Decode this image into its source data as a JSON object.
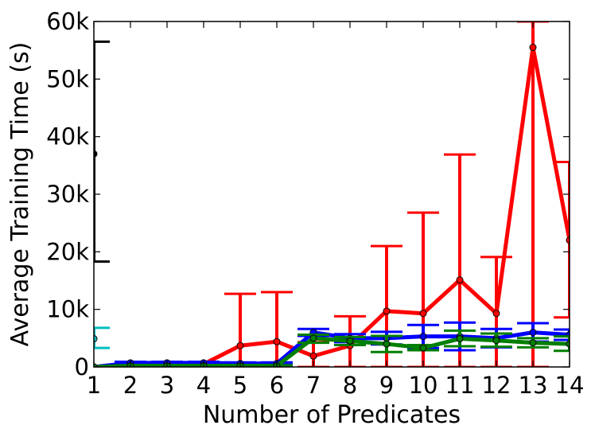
{
  "chart_data": {
    "type": "line",
    "title": "",
    "xlabel": "Number of Predicates",
    "ylabel": "Average Training Time (s)",
    "xlim": [
      1,
      14
    ],
    "ylim": [
      0,
      60000
    ],
    "x_ticks": [
      1,
      2,
      3,
      4,
      5,
      6,
      7,
      8,
      9,
      10,
      11,
      12,
      13,
      14
    ],
    "x_tick_labels": [
      "1",
      "2",
      "3",
      "4",
      "5",
      "6",
      "7",
      "8",
      "9",
      "10",
      "11",
      "12",
      "13",
      "14"
    ],
    "y_ticks": [
      0,
      10000,
      20000,
      30000,
      40000,
      50000,
      60000
    ],
    "y_tick_labels": [
      "0",
      "10k",
      "20k",
      "30k",
      "40k",
      "50k",
      "60k"
    ],
    "grid": false,
    "legend": "none",
    "series": [
      {
        "color": "#ff0000",
        "x": [
          1,
          2,
          3,
          4,
          5,
          6,
          7,
          8,
          9,
          10,
          11,
          12,
          13,
          14
        ],
        "y": [
          0,
          300,
          400,
          500,
          3700,
          4400,
          1900,
          3700,
          9700,
          9300,
          15100,
          9300,
          55500,
          22000
        ],
        "err_low": [
          0,
          0,
          0,
          0,
          0,
          0,
          0,
          0,
          0,
          0,
          0,
          0,
          0,
          8600
        ],
        "err_high": [
          0,
          400,
          500,
          700,
          12700,
          13000,
          4300,
          8800,
          21000,
          26800,
          36900,
          19100,
          60000,
          35600
        ]
      },
      {
        "color": "#0000ff",
        "x": [
          1,
          2,
          3,
          4,
          5,
          6,
          7,
          8,
          9,
          10,
          11,
          12,
          13,
          14
        ],
        "y": [
          0,
          700,
          700,
          700,
          600,
          600,
          6000,
          5000,
          5000,
          5300,
          5300,
          5000,
          6000,
          5600
        ],
        "err_low": [
          0,
          500,
          500,
          500,
          400,
          400,
          5400,
          4300,
          3900,
          3300,
          2900,
          3400,
          4400,
          4700
        ],
        "err_high": [
          0,
          900,
          900,
          900,
          800,
          800,
          6600,
          5700,
          6100,
          7300,
          7700,
          6600,
          7600,
          6500
        ]
      },
      {
        "color": "#007f00",
        "x": [
          1,
          2,
          3,
          4,
          5,
          6,
          7,
          8,
          9,
          10,
          11,
          12,
          13,
          14
        ],
        "y": [
          0,
          200,
          200,
          200,
          200,
          200,
          5000,
          4500,
          4000,
          3300,
          4900,
          4600,
          4200,
          4000
        ],
        "err_low": [
          0,
          100,
          100,
          100,
          100,
          100,
          4200,
          3800,
          2600,
          2900,
          3600,
          3500,
          3400,
          2800
        ],
        "err_high": [
          0,
          300,
          300,
          300,
          300,
          300,
          5600,
          5200,
          5400,
          3800,
          6300,
          5800,
          5000,
          5300
        ]
      },
      {
        "color": "#00bfbf",
        "x": [
          1
        ],
        "y": [
          4900
        ],
        "err_low": [
          3300
        ],
        "err_high": [
          6800
        ]
      },
      {
        "color": "#000000",
        "x": [
          1
        ],
        "y": [
          37000
        ],
        "err_low": [
          18300
        ],
        "err_high": [
          56500
        ]
      }
    ]
  }
}
